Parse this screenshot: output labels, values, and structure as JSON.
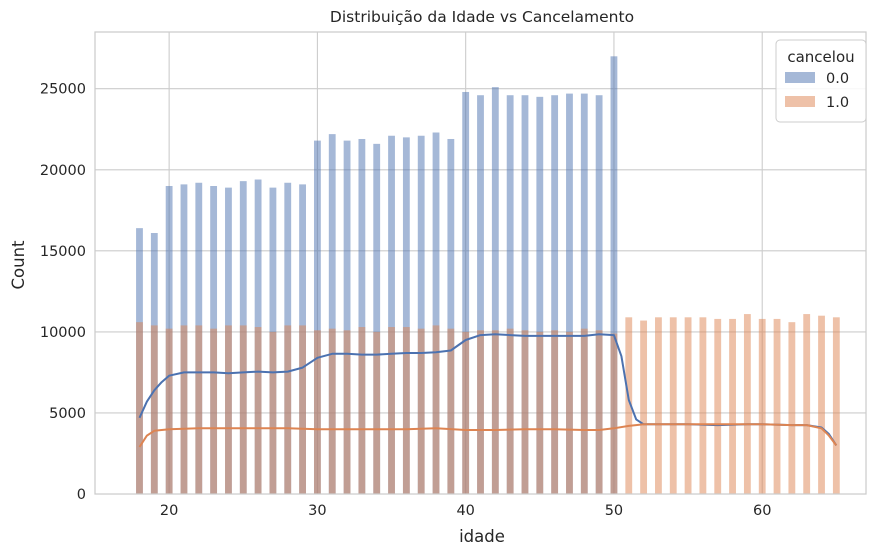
{
  "chart_data": {
    "type": "bar",
    "title": "Distribuição da Idade vs Cancelamento",
    "xlabel": "idade",
    "ylabel": "Count",
    "xlim": [
      15,
      67
    ],
    "ylim": [
      0,
      28500
    ],
    "xticks": [
      20,
      30,
      40,
      50,
      60
    ],
    "yticks": [
      0,
      5000,
      10000,
      15000,
      20000,
      25000
    ],
    "grid": true,
    "legend": {
      "title": "cancelou",
      "position": "top-right"
    },
    "bins": [
      18,
      19,
      20,
      21,
      22,
      23,
      24,
      25,
      26,
      27,
      28,
      29,
      30,
      31,
      32,
      33,
      34,
      35,
      36,
      37,
      38,
      39,
      40,
      41,
      42,
      43,
      44,
      45,
      46,
      47,
      48,
      49,
      50,
      51,
      52,
      53,
      54,
      55,
      56,
      57,
      58,
      59,
      60,
      61,
      62,
      63,
      64,
      65
    ],
    "series": [
      {
        "name": "0.0",
        "color": "#4c72b0",
        "values": [
          16400,
          16100,
          19000,
          19100,
          19200,
          19000,
          18900,
          19300,
          19400,
          18900,
          19200,
          19100,
          21800,
          22200,
          21800,
          21900,
          21600,
          22100,
          22000,
          22100,
          22300,
          21900,
          24800,
          24600,
          25100,
          24600,
          24600,
          24500,
          24600,
          24700,
          24700,
          24600,
          27000,
          0,
          0,
          0,
          0,
          0,
          0,
          0,
          0,
          0,
          0,
          0,
          0,
          0,
          0,
          0
        ],
        "kde": [
          [
            18,
            4700
          ],
          [
            18.5,
            5700
          ],
          [
            19,
            6400
          ],
          [
            19.5,
            6900
          ],
          [
            20,
            7300
          ],
          [
            21,
            7500
          ],
          [
            22,
            7500
          ],
          [
            23,
            7500
          ],
          [
            24,
            7450
          ],
          [
            25,
            7500
          ],
          [
            26,
            7550
          ],
          [
            27,
            7500
          ],
          [
            28,
            7550
          ],
          [
            29,
            7800
          ],
          [
            30,
            8400
          ],
          [
            31,
            8650
          ],
          [
            32,
            8650
          ],
          [
            33,
            8600
          ],
          [
            34,
            8600
          ],
          [
            35,
            8650
          ],
          [
            36,
            8700
          ],
          [
            37,
            8700
          ],
          [
            38,
            8750
          ],
          [
            39,
            8850
          ],
          [
            40,
            9500
          ],
          [
            41,
            9800
          ],
          [
            42,
            9850
          ],
          [
            43,
            9800
          ],
          [
            44,
            9750
          ],
          [
            45,
            9750
          ],
          [
            46,
            9750
          ],
          [
            47,
            9750
          ],
          [
            48,
            9750
          ],
          [
            49,
            9850
          ],
          [
            50,
            9800
          ],
          [
            50.5,
            8500
          ],
          [
            51,
            5800
          ],
          [
            51.5,
            4600
          ],
          [
            52,
            4300
          ],
          [
            53,
            4300
          ],
          [
            55,
            4300
          ],
          [
            57,
            4250
          ],
          [
            59,
            4300
          ],
          [
            60,
            4300
          ],
          [
            62,
            4250
          ],
          [
            63,
            4250
          ],
          [
            64,
            4100
          ],
          [
            64.5,
            3700
          ],
          [
            65,
            3000
          ]
        ]
      },
      {
        "name": "1.0",
        "color": "#dd8452",
        "values": [
          10600,
          10400,
          10200,
          10400,
          10400,
          10200,
          10400,
          10400,
          10300,
          10000,
          10400,
          10400,
          10100,
          10200,
          10100,
          10300,
          10000,
          10300,
          10300,
          10200,
          10400,
          10200,
          10000,
          10100,
          10100,
          10200,
          10100,
          10000,
          10100,
          10000,
          10200,
          10100,
          9900,
          10900,
          10700,
          10900,
          10900,
          10900,
          10900,
          10800,
          10800,
          11100,
          10800,
          10800,
          10600,
          11100,
          11000,
          10900
        ],
        "kde": [
          [
            18,
            2900
          ],
          [
            18.5,
            3600
          ],
          [
            19,
            3900
          ],
          [
            20,
            4000
          ],
          [
            22,
            4050
          ],
          [
            24,
            4050
          ],
          [
            26,
            4050
          ],
          [
            28,
            4050
          ],
          [
            30,
            4000
          ],
          [
            32,
            4000
          ],
          [
            34,
            4000
          ],
          [
            36,
            4000
          ],
          [
            38,
            4050
          ],
          [
            40,
            3950
          ],
          [
            42,
            3950
          ],
          [
            44,
            4000
          ],
          [
            46,
            4000
          ],
          [
            48,
            3950
          ],
          [
            49,
            3950
          ],
          [
            50,
            4050
          ],
          [
            51,
            4200
          ],
          [
            52,
            4300
          ],
          [
            55,
            4300
          ],
          [
            58,
            4300
          ],
          [
            60,
            4300
          ],
          [
            62,
            4250
          ],
          [
            63,
            4250
          ],
          [
            64,
            4050
          ],
          [
            64.5,
            3600
          ],
          [
            65,
            3000
          ]
        ]
      }
    ]
  }
}
